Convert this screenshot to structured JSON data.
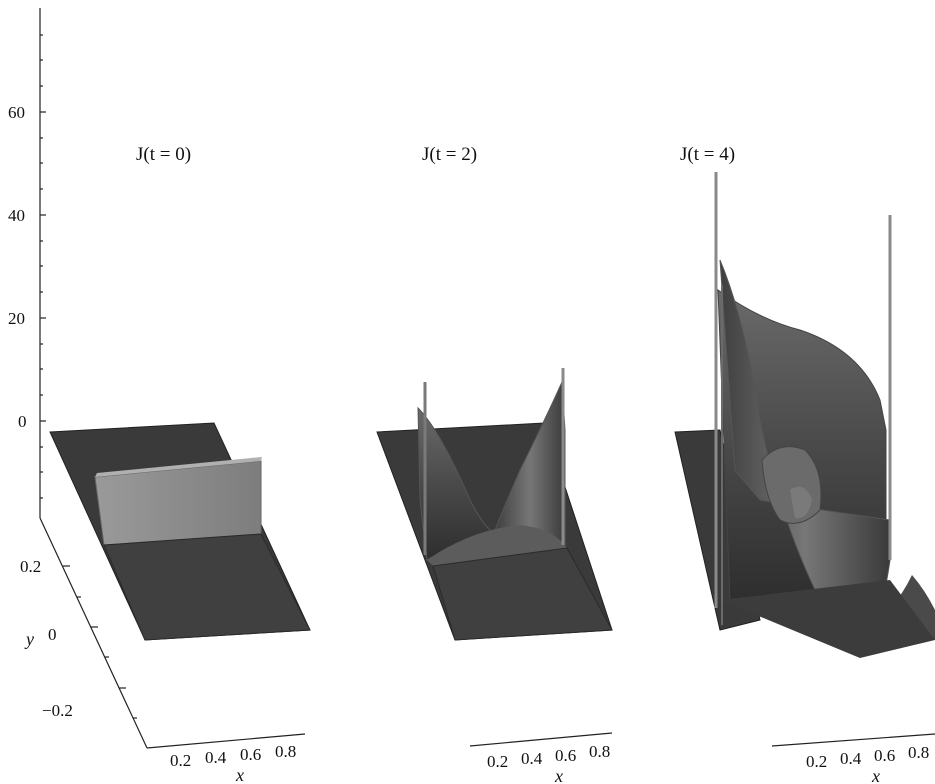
{
  "chart_data": {
    "type": "surface",
    "z_axis": {
      "ticks": [
        "60",
        "40",
        "20",
        "0"
      ],
      "values": [
        60,
        40,
        20,
        0
      ]
    },
    "y_axis": {
      "label": "y",
      "ticks": [
        "0.2",
        "0",
        "−0.2"
      ],
      "values": [
        0.2,
        0,
        -0.2
      ]
    },
    "x_axis": {
      "label": "x",
      "ticks": [
        "0.2",
        "0.4",
        "0.6",
        "0.8"
      ],
      "values": [
        0.2,
        0.4,
        0.6,
        0.8
      ]
    },
    "panels": [
      {
        "title": "J(t = 0)",
        "t": 0
      },
      {
        "title": "J(t = 2)",
        "t": 2
      },
      {
        "title": "J(t = 4)",
        "t": 4
      }
    ]
  },
  "colors": {
    "surface_dark": "#3a3a3a",
    "surface_light": "#8c8c8c",
    "axis": "#222222"
  }
}
